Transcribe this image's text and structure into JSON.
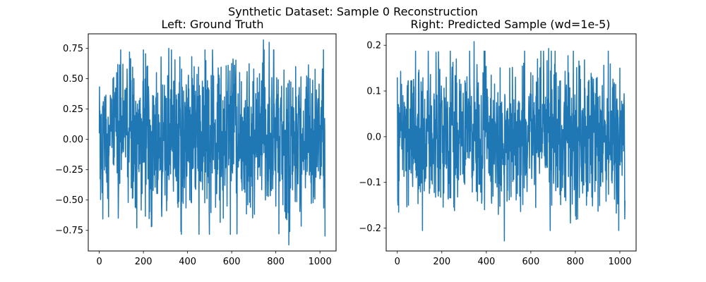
{
  "figure": {
    "suptitle": "Synthetic Dataset: Sample 0 Reconstruction"
  },
  "chart_data": [
    {
      "type": "line",
      "title": "Left: Ground Truth",
      "xlabel": "",
      "ylabel": "",
      "xlim": [
        -50,
        1073
      ],
      "ylim": [
        -0.92,
        0.87
      ],
      "xticks": [
        0,
        200,
        400,
        600,
        800,
        1000
      ],
      "yticks": [
        -0.75,
        -0.5,
        -0.25,
        0.0,
        0.25,
        0.5,
        0.75
      ],
      "ytick_labels": [
        "−0.75",
        "−0.50",
        "−0.25",
        "0.00",
        "0.25",
        "0.50",
        "0.75"
      ],
      "grid": false,
      "color": "#1f77b4",
      "n_points": 1024,
      "y_range": [
        -0.87,
        0.82
      ],
      "series": [
        {
          "x": [
            0,
            8,
            13,
            35,
            62,
            79,
            86,
            107,
            126,
            137,
            145,
            170,
            216,
            236,
            259,
            280,
            315,
            335,
            365,
            370,
            410,
            430,
            483,
            514,
            545,
            582,
            624,
            700,
            740,
            744,
            753,
            770,
            800,
            845,
            859,
            890,
            955,
            1010,
            1019,
            1023
          ],
          "values": [
            0.05,
            0.2,
            -0.44,
            -0.3,
            0.5,
            0.55,
            -0.65,
            0.62,
            0.58,
            0.72,
            -0.4,
            -0.73,
            0.6,
            -0.72,
            0.55,
            0.68,
            0.75,
            -0.3,
            0.68,
            -0.76,
            -0.5,
            0.6,
            0.65,
            0.62,
            -0.5,
            0.3,
            -0.78,
            0.58,
            0.63,
            0.82,
            -0.5,
            0.8,
            -0.55,
            -0.65,
            -0.87,
            0.6,
            0.5,
            0.45,
            0.15,
            -0.8
          ]
        }
      ]
    },
    {
      "type": "line",
      "title": "Right: Predicted Sample (wd=1e-5)",
      "xlabel": "",
      "ylabel": "",
      "xlim": [
        -50,
        1073
      ],
      "ylim": [
        -0.25,
        0.225
      ],
      "xticks": [
        0,
        200,
        400,
        600,
        800,
        1000
      ],
      "yticks": [
        -0.2,
        -0.1,
        0.0,
        0.1,
        0.2
      ],
      "ytick_labels": [
        "−0.2",
        "−0.1",
        "0.0",
        "0.1",
        "0.2"
      ],
      "grid": false,
      "color": "#1f77b4",
      "n_points": 1024,
      "y_range": [
        -0.228,
        0.208
      ],
      "series": [
        {
          "x": [
            0,
            10,
            25,
            50,
            95,
            135,
            186,
            220,
            245,
            265,
            300,
            345,
            355,
            385,
            430,
            454,
            481,
            505,
            550,
            583,
            600,
            630,
            680,
            686,
            714,
            757,
            770,
            810,
            820,
            850,
            875,
            888,
            1000,
            1023
          ],
          "values": [
            0.13,
            -0.02,
            0.09,
            -0.15,
            0.14,
            0.1,
            0.14,
            0.13,
            0.12,
            0.17,
            -0.1,
            0.208,
            -0.12,
            0.14,
            -0.13,
            -0.17,
            -0.228,
            0.15,
            -0.13,
            -0.12,
            0.14,
            0.17,
            0.193,
            -0.12,
            0.14,
            -0.14,
            0.14,
            -0.18,
            0.155,
            -0.15,
            0.13,
            -0.12,
            0.15,
            -0.14
          ]
        }
      ]
    }
  ]
}
